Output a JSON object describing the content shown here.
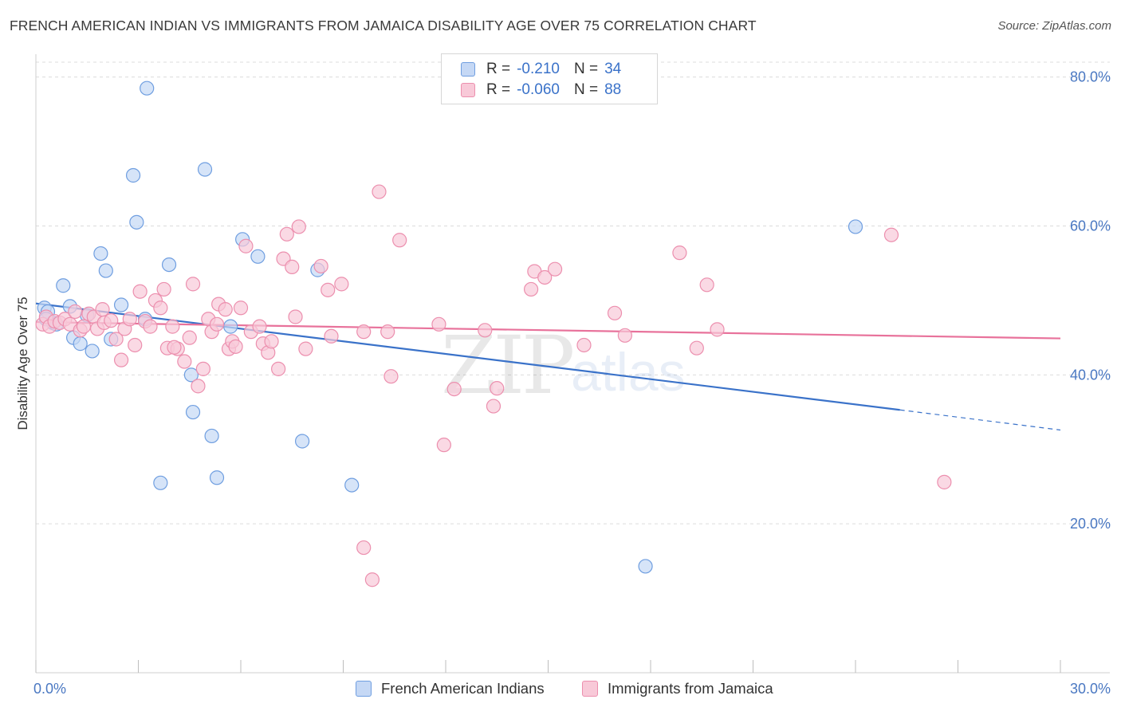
{
  "title": "FRENCH AMERICAN INDIAN VS IMMIGRANTS FROM JAMAICA DISABILITY AGE OVER 75 CORRELATION CHART",
  "source": "Source: ZipAtlas.com",
  "watermark": {
    "zip": "ZIP",
    "atlas": "atlas"
  },
  "colors": {
    "blue_fill": "#c5d8f5",
    "blue_stroke": "#6f9ee0",
    "blue_line": "#3a72c9",
    "pink_fill": "#f8c9d8",
    "pink_stroke": "#ec8fae",
    "pink_line": "#e8729b",
    "axis_text": "#4a78c2",
    "grid": "#dcdcdc"
  },
  "legend": {
    "rows": [
      {
        "r_label": "R =",
        "r_value": "-0.210",
        "n_label": "N =",
        "n_value": "34"
      },
      {
        "r_label": "R =",
        "r_value": "-0.060",
        "n_label": "N =",
        "n_value": "88"
      }
    ]
  },
  "bottom_legend": [
    "French American Indians",
    "Immigrants from Jamaica"
  ],
  "chart_data": {
    "type": "scatter",
    "title": "FRENCH AMERICAN INDIAN VS IMMIGRANTS FROM JAMAICA DISABILITY AGE OVER 75 CORRELATION CHART",
    "xlabel": "",
    "ylabel": "Disability Age Over 75",
    "xlim": [
      0,
      30
    ],
    "ylim": [
      0,
      82
    ],
    "x_tick_labels": [
      {
        "value": 0,
        "label": "0.0%"
      },
      {
        "value": 30,
        "label": "30.0%"
      }
    ],
    "y_tick_labels": [
      {
        "value": 20,
        "label": "20.0%"
      },
      {
        "value": 40,
        "label": "40.0%"
      },
      {
        "value": 60,
        "label": "60.0%"
      },
      {
        "value": 80,
        "label": "80.0%"
      }
    ],
    "grid": true,
    "legend_position": "top-center",
    "series": [
      {
        "name": "French American Indians",
        "color": "#6f9ee0",
        "points": [
          [
            0.25,
            49.0
          ],
          [
            0.35,
            48.5
          ],
          [
            0.5,
            47.0
          ],
          [
            0.8,
            52.0
          ],
          [
            1.0,
            49.2
          ],
          [
            1.1,
            45.0
          ],
          [
            1.3,
            44.2
          ],
          [
            1.5,
            48.0
          ],
          [
            1.65,
            43.2
          ],
          [
            1.9,
            56.3
          ],
          [
            2.05,
            54.0
          ],
          [
            2.2,
            44.8
          ],
          [
            2.5,
            49.4
          ],
          [
            2.85,
            66.8
          ],
          [
            2.95,
            60.5
          ],
          [
            3.2,
            47.5
          ],
          [
            3.25,
            78.5
          ],
          [
            3.65,
            25.5
          ],
          [
            3.9,
            54.8
          ],
          [
            4.55,
            40.0
          ],
          [
            4.6,
            35.0
          ],
          [
            4.95,
            67.6
          ],
          [
            5.15,
            31.8
          ],
          [
            5.3,
            26.2
          ],
          [
            5.7,
            46.5
          ],
          [
            6.05,
            58.2
          ],
          [
            6.5,
            55.9
          ],
          [
            7.8,
            31.1
          ],
          [
            8.25,
            54.1
          ],
          [
            9.25,
            25.2
          ],
          [
            17.85,
            14.3
          ],
          [
            24.0,
            59.9
          ],
          [
            0.3,
            47.5
          ],
          [
            0.6,
            46.8
          ]
        ],
        "trend": {
          "x0": 0.0,
          "y0": 49.6,
          "x1": 25.3,
          "y1": 35.3,
          "dash_x1": 30.0,
          "dash_y1": 32.6
        }
      },
      {
        "name": "Immigrants from Jamaica",
        "color": "#ec8fae",
        "points": [
          [
            0.2,
            46.8
          ],
          [
            0.3,
            47.8
          ],
          [
            0.4,
            46.5
          ],
          [
            0.55,
            47.2
          ],
          [
            0.7,
            47.0
          ],
          [
            0.85,
            47.5
          ],
          [
            1.0,
            46.8
          ],
          [
            1.15,
            48.5
          ],
          [
            1.3,
            46.0
          ],
          [
            1.4,
            46.5
          ],
          [
            1.55,
            48.2
          ],
          [
            1.7,
            47.8
          ],
          [
            1.8,
            46.2
          ],
          [
            1.95,
            48.8
          ],
          [
            2.0,
            47.0
          ],
          [
            2.2,
            47.3
          ],
          [
            2.35,
            44.8
          ],
          [
            2.5,
            42.0
          ],
          [
            2.6,
            46.2
          ],
          [
            2.75,
            47.5
          ],
          [
            2.9,
            44.0
          ],
          [
            3.05,
            51.2
          ],
          [
            3.2,
            47.2
          ],
          [
            3.35,
            46.5
          ],
          [
            3.5,
            50.0
          ],
          [
            3.65,
            49.0
          ],
          [
            3.75,
            51.5
          ],
          [
            3.85,
            43.6
          ],
          [
            4.0,
            46.5
          ],
          [
            4.15,
            43.5
          ],
          [
            4.35,
            41.8
          ],
          [
            4.5,
            45.0
          ],
          [
            4.6,
            52.2
          ],
          [
            4.75,
            38.5
          ],
          [
            4.9,
            40.8
          ],
          [
            5.05,
            47.5
          ],
          [
            5.15,
            45.8
          ],
          [
            5.3,
            46.8
          ],
          [
            5.35,
            49.5
          ],
          [
            5.55,
            48.8
          ],
          [
            5.65,
            43.5
          ],
          [
            5.75,
            44.5
          ],
          [
            5.85,
            43.8
          ],
          [
            6.0,
            49.0
          ],
          [
            6.15,
            57.3
          ],
          [
            6.3,
            45.8
          ],
          [
            6.55,
            46.5
          ],
          [
            6.65,
            44.2
          ],
          [
            6.8,
            43.0
          ],
          [
            6.9,
            44.5
          ],
          [
            7.1,
            40.8
          ],
          [
            7.25,
            55.6
          ],
          [
            7.35,
            58.9
          ],
          [
            7.5,
            54.5
          ],
          [
            7.6,
            47.8
          ],
          [
            7.7,
            59.9
          ],
          [
            7.9,
            43.5
          ],
          [
            8.35,
            54.6
          ],
          [
            8.55,
            51.4
          ],
          [
            8.65,
            45.2
          ],
          [
            8.95,
            52.2
          ],
          [
            9.6,
            45.8
          ],
          [
            10.05,
            64.6
          ],
          [
            10.3,
            45.8
          ],
          [
            10.4,
            39.8
          ],
          [
            10.65,
            58.1
          ],
          [
            11.8,
            46.8
          ],
          [
            11.95,
            30.6
          ],
          [
            12.25,
            38.1
          ],
          [
            13.15,
            46.0
          ],
          [
            13.4,
            35.8
          ],
          [
            13.5,
            38.2
          ],
          [
            14.5,
            51.5
          ],
          [
            14.6,
            53.9
          ],
          [
            14.9,
            53.1
          ],
          [
            15.2,
            54.2
          ],
          [
            16.05,
            44.0
          ],
          [
            16.95,
            48.3
          ],
          [
            17.25,
            45.3
          ],
          [
            18.85,
            56.4
          ],
          [
            19.35,
            43.6
          ],
          [
            19.65,
            52.1
          ],
          [
            19.95,
            46.1
          ],
          [
            25.05,
            58.8
          ],
          [
            26.6,
            25.6
          ],
          [
            9.6,
            16.8
          ],
          [
            9.85,
            12.5
          ],
          [
            4.05,
            43.7
          ]
        ],
        "trend": {
          "x0": 0.0,
          "y0": 47.1,
          "x1": 30.0,
          "y1": 44.9
        }
      }
    ]
  }
}
